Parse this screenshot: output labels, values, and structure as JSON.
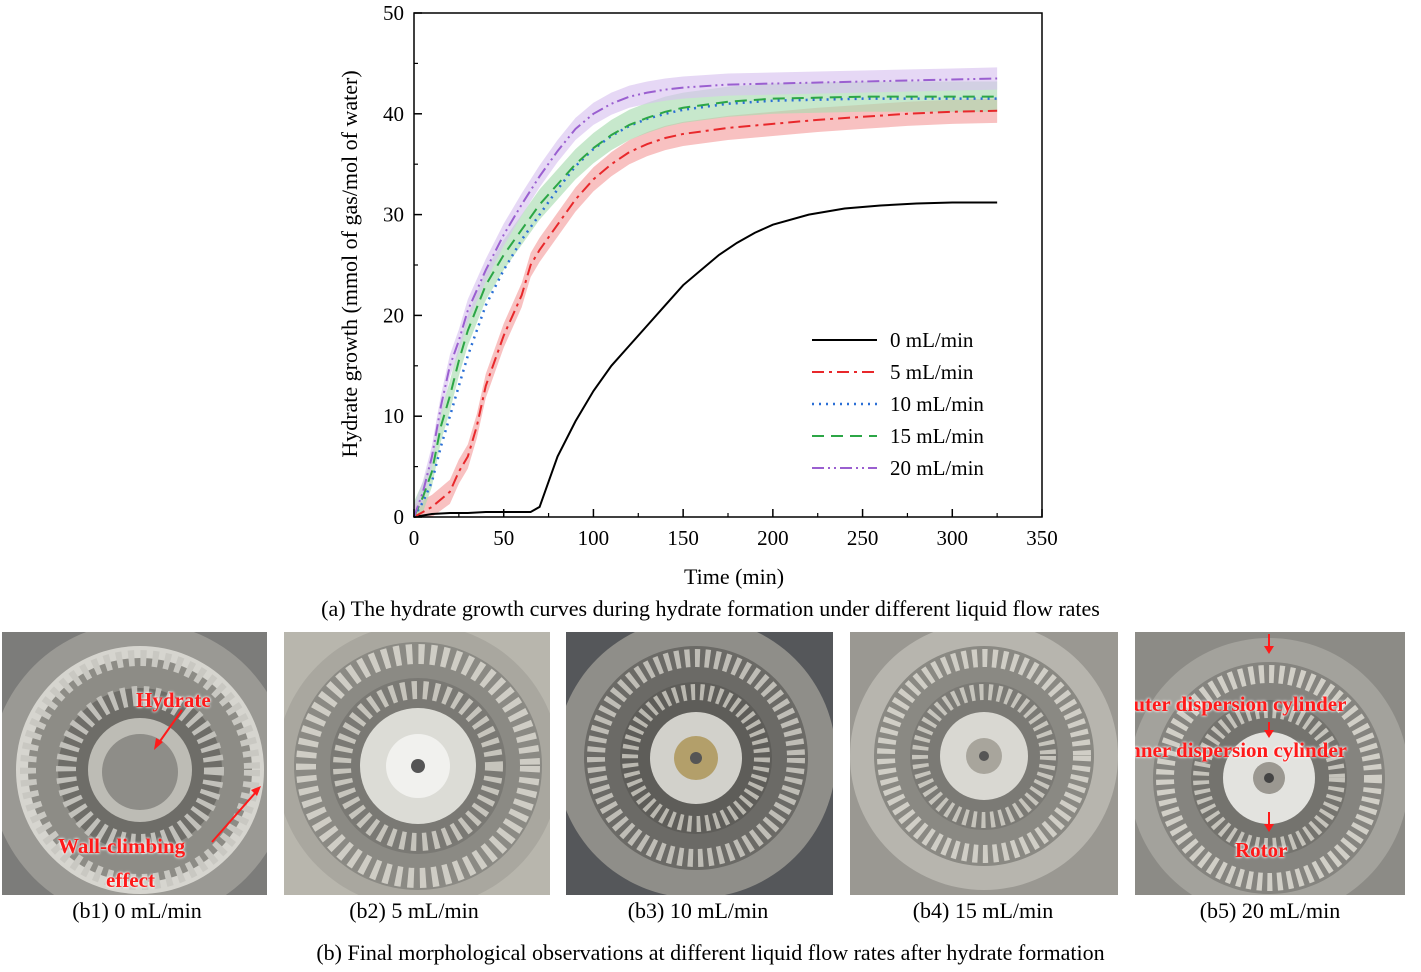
{
  "chart_data": {
    "type": "line",
    "title": "",
    "xlabel": "Time (min)",
    "ylabel": "Hydrate growth (mmol of gas/mol of water)",
    "xlim": [
      0,
      350
    ],
    "ylim": [
      0,
      50
    ],
    "xticks": [
      0,
      50,
      100,
      150,
      200,
      250,
      300,
      350
    ],
    "yticks": [
      0,
      10,
      20,
      30,
      40,
      50
    ],
    "legend_position": "lower-right",
    "grid": false,
    "series": [
      {
        "name": "0 mL/min",
        "color": "#000000",
        "dash": "solid",
        "band": 0,
        "x": [
          0,
          10,
          20,
          30,
          40,
          50,
          60,
          65,
          70,
          75,
          80,
          90,
          100,
          110,
          120,
          130,
          140,
          150,
          160,
          170,
          180,
          190,
          200,
          220,
          240,
          260,
          280,
          300,
          325
        ],
        "y": [
          0,
          0.3,
          0.4,
          0.4,
          0.5,
          0.5,
          0.5,
          0.5,
          1.0,
          3.5,
          6,
          9.5,
          12.5,
          15.0,
          17.0,
          19.0,
          21.0,
          23.0,
          24.5,
          26.0,
          27.2,
          28.2,
          29.0,
          30.0,
          30.6,
          30.9,
          31.1,
          31.2,
          31.2
        ]
      },
      {
        "name": "5 mL/min",
        "color": "#e8282b",
        "dash": "dashdot",
        "band": 1.2,
        "band_color": "#f4a0a0",
        "x": [
          0,
          10,
          20,
          25,
          30,
          35,
          40,
          50,
          60,
          65,
          70,
          80,
          90,
          100,
          110,
          120,
          130,
          140,
          150,
          175,
          200,
          225,
          250,
          275,
          300,
          325
        ],
        "y": [
          0,
          1.0,
          2.5,
          4.5,
          6.0,
          9.0,
          13.0,
          18.0,
          22.0,
          25.0,
          26.5,
          29.0,
          31.5,
          33.5,
          35.0,
          36.2,
          37.0,
          37.6,
          38.0,
          38.6,
          39.0,
          39.4,
          39.7,
          40.0,
          40.2,
          40.3
        ]
      },
      {
        "name": "10 mL/min",
        "color": "#2a6fd6",
        "dash": "dotted",
        "band": 0,
        "x": [
          0,
          5,
          10,
          15,
          20,
          25,
          30,
          40,
          50,
          60,
          70,
          80,
          90,
          100,
          110,
          120,
          130,
          140,
          150,
          175,
          200,
          250,
          300,
          325
        ],
        "y": [
          0,
          1.5,
          3.5,
          7.0,
          10.0,
          13.0,
          16.0,
          21.0,
          24.5,
          27.5,
          30.0,
          32.5,
          34.8,
          36.5,
          37.8,
          38.8,
          39.5,
          40.0,
          40.4,
          41.0,
          41.3,
          41.5,
          41.5,
          41.5
        ]
      },
      {
        "name": "15 mL/min",
        "color": "#2ca646",
        "dash": "dashed",
        "band": 1.5,
        "band_color": "#a9dcb0",
        "x": [
          0,
          5,
          10,
          15,
          20,
          25,
          30,
          40,
          50,
          60,
          70,
          80,
          90,
          100,
          110,
          120,
          130,
          140,
          150,
          175,
          200,
          250,
          300,
          325
        ],
        "y": [
          0,
          2.0,
          4.5,
          9.0,
          12.0,
          15.5,
          18.5,
          23.0,
          26.0,
          28.5,
          31.0,
          33.0,
          35.0,
          36.6,
          37.9,
          38.9,
          39.6,
          40.2,
          40.6,
          41.2,
          41.5,
          41.7,
          41.7,
          41.7
        ]
      },
      {
        "name": "20 mL/min",
        "color": "#9a5fd0",
        "dash": "dashdotdot",
        "band": 1.1,
        "band_color": "#d8c3ef",
        "x": [
          0,
          5,
          10,
          15,
          20,
          25,
          30,
          40,
          50,
          60,
          70,
          80,
          90,
          100,
          110,
          120,
          130,
          140,
          150,
          175,
          200,
          250,
          300,
          325
        ],
        "y": [
          0,
          2.5,
          6.0,
          11.0,
          15.0,
          17.5,
          20.5,
          24.5,
          28.0,
          31.0,
          33.8,
          36.3,
          38.5,
          40.0,
          41.0,
          41.7,
          42.1,
          42.4,
          42.6,
          42.9,
          43.0,
          43.2,
          43.4,
          43.5
        ]
      }
    ]
  },
  "captions": {
    "a": "(a) The hydrate growth curves during hydrate formation under different liquid flow rates",
    "b": "(b) Final morphological observations at different liquid flow rates after hydrate formation"
  },
  "photos": [
    {
      "label": "(b1) 0 mL/min"
    },
    {
      "label": "(b2) 5 mL/min"
    },
    {
      "label": "(b3) 10 mL/min"
    },
    {
      "label": "(b4) 15 mL/min"
    },
    {
      "label": "(b5) 20 mL/min"
    }
  ],
  "annotations": {
    "hydrate": "Hydrate",
    "wall_climbing_1": "Wall-climbing",
    "wall_climbing_2": "effect",
    "outer_cylinder": "Outer dispersion cylinder",
    "inner_cylinder": "Inner dispersion cylinder",
    "rotor": "Rotor"
  }
}
